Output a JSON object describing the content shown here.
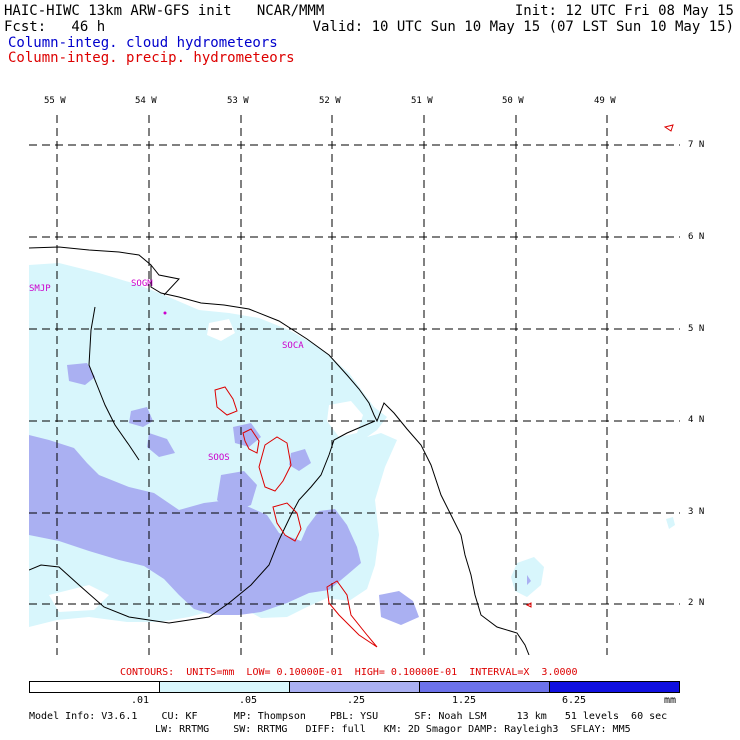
{
  "header": {
    "line1_left": "HAIC-HIWC 13km ARW-GFS init   NCAR/MMM",
    "line1_right": "Init: 12 UTC Fri 08 May 15",
    "line2_left": "Fcst:   46 h",
    "line2_right": "Valid: 10 UTC Sun 10 May 15 (07 LST Sun 10 May 15)",
    "legend_cloud": "Column-integ. cloud hydrometeors",
    "legend_precip": "Column-integ. precip. hydrometeors",
    "colors": {
      "cloud_text": "#0000cc",
      "precip_text": "#dd0000"
    }
  },
  "map": {
    "lon_labels": [
      "55 W",
      "54 W",
      "53 W",
      "52 W",
      "51 W",
      "50 W",
      "49 W"
    ],
    "lat_labels": [
      "7 N",
      "6 N",
      "5 N",
      "4 N",
      "3 N",
      "2 N"
    ],
    "stations": [
      "SMJP",
      "SOGM",
      "SOCA",
      "SOOS"
    ],
    "colors": {
      "fill_light": "#d8f6fc",
      "fill_mid": "#aab0f2",
      "contour": "#dd0000",
      "coast": "#000000",
      "station": "#cc00cc"
    }
  },
  "contour_info": "CONTOURS:  UNITS=mm  LOW= 0.10000E-01  HIGH= 0.10000E-01  INTERVAL=X  3.0000",
  "color_scale": {
    "labels": [
      ".01",
      ".05",
      ".25",
      "1.25",
      "6.25"
    ],
    "units": "mm",
    "colors": [
      "#ffffff",
      "#d8f6fc",
      "#aab0f2",
      "#6c72ea",
      "#1010e0"
    ]
  },
  "model_info": {
    "line1": "Model Info: V3.6.1    CU: KF      MP: Thompson    PBL: YSU      SF: Noah LSM     13 km   51 levels  60 sec",
    "line2": "LW: RRTMG    SW: RRTMG   DIFF: full   KM: 2D Smagor DAMP: Rayleigh3  SFLAY: MM5"
  }
}
